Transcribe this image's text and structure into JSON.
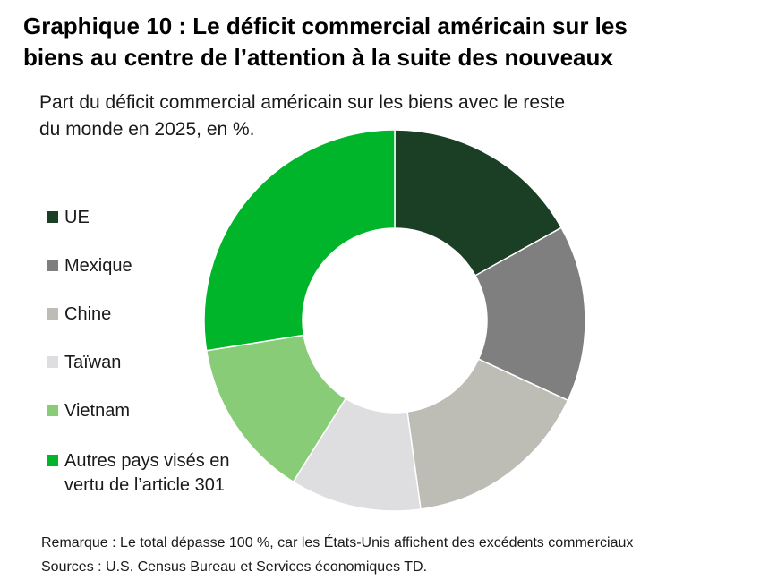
{
  "title_line1": "Graphique 10 : Le déficit commercial américain sur les",
  "title_line2": "biens au centre de l’attention à la suite des nouveaux",
  "subtitle_line1": "Part du déficit commercial américain sur les biens avec le reste",
  "subtitle_line2": "du monde en 2025, en %.",
  "legend": [
    {
      "label_lines": [
        "UE"
      ],
      "color": "#1a3f24"
    },
    {
      "label_lines": [
        "Mexique"
      ],
      "color": "#7f7f7f"
    },
    {
      "label_lines": [
        "Chine"
      ],
      "color": "#bdbcb5"
    },
    {
      "label_lines": [
        "Taïwan"
      ],
      "color": "#dedee0"
    },
    {
      "label_lines": [
        "Vietnam"
      ],
      "color": "#88cc77"
    },
    {
      "label_lines": [
        "Autres pays visés en",
        "vertu de l’article 301"
      ],
      "color": "#00b52a"
    }
  ],
  "chart_data": {
    "type": "donut",
    "categories": [
      "UE",
      "Mexique",
      "Chine",
      "Taïwan",
      "Vietnam",
      "Autres pays visés en vertu de l’article 301"
    ],
    "values": [
      17.5,
      15.5,
      16.5,
      11.5,
      14,
      28.5
    ],
    "colors": [
      "#1a3f24",
      "#7f7f7f",
      "#bdbcb5",
      "#dedee0",
      "#88cc77",
      "#00b52a"
    ],
    "legend_position": "left"
  },
  "note": "Remarque : Le total dépasse 100 %, car les États-Unis affichent des excédents commerciaux",
  "sources": "Sources : U.S. Census Bureau et Services économiques TD."
}
